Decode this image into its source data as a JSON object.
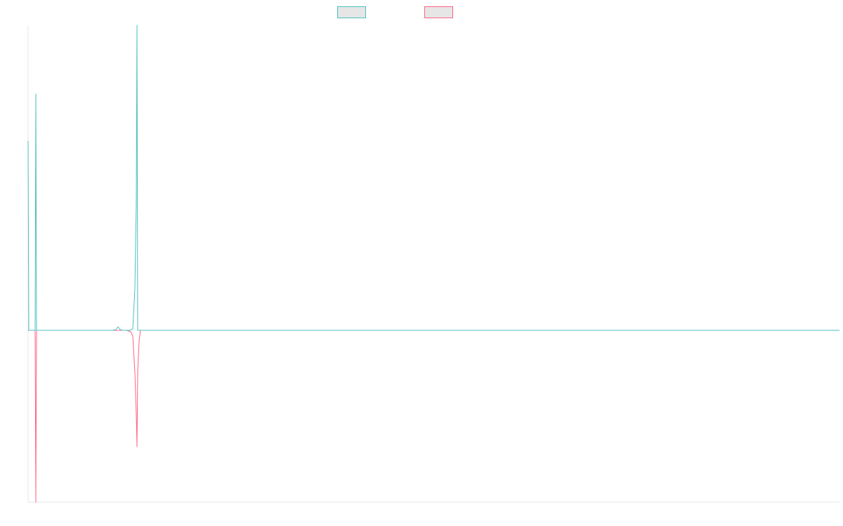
{
  "chart_data": {
    "type": "line",
    "title": "",
    "xlabel": "",
    "ylabel": "",
    "grid": false,
    "legend": "top-center",
    "xlim": [
      0,
      1155
    ],
    "ylim": [
      -245,
      435
    ],
    "series": [
      {
        "name": "",
        "color": "#4bc0c0",
        "fill": "#e6e6e6",
        "points": [
          [
            0,
            270
          ],
          [
            1,
            0
          ],
          [
            4,
            0
          ],
          [
            10,
            0
          ],
          [
            11,
            337
          ],
          [
            12,
            0
          ],
          [
            120,
            0
          ],
          [
            125,
            1
          ],
          [
            128,
            5
          ],
          [
            131,
            1
          ],
          [
            135,
            0
          ],
          [
            145,
            0
          ],
          [
            149,
            2
          ],
          [
            152,
            60
          ],
          [
            154,
            180
          ],
          [
            155,
            435
          ],
          [
            156,
            0
          ],
          [
            160,
            0
          ],
          [
            1155,
            0
          ]
        ]
      },
      {
        "name": "",
        "color": "#ff6384",
        "fill": "#e6e6e6",
        "points": [
          [
            0,
            0
          ],
          [
            10,
            0
          ],
          [
            11,
            -245
          ],
          [
            12,
            0
          ],
          [
            140,
            0
          ],
          [
            146,
            -2
          ],
          [
            149,
            -8
          ],
          [
            152,
            -60
          ],
          [
            154,
            -120
          ],
          [
            155,
            -166
          ],
          [
            156,
            -60
          ],
          [
            158,
            -15
          ],
          [
            160,
            0
          ],
          [
            1155,
            0
          ]
        ]
      }
    ]
  }
}
